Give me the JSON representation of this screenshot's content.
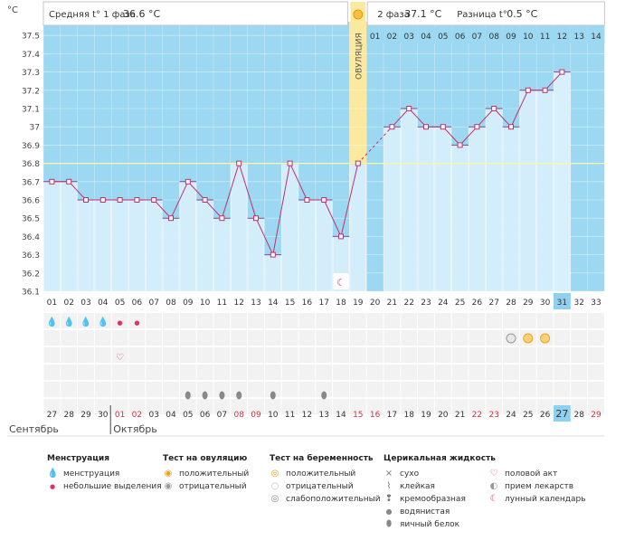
{
  "chart_data": {
    "type": "line",
    "y_unit": "°C",
    "ylim": [
      36.1,
      37.5
    ],
    "yticks": [
      "37.5",
      "37.4",
      "37.3",
      "37.2",
      "37.1",
      "37",
      "36.9",
      "36.8",
      "36.7",
      "36.6",
      "36.5",
      "36.4",
      "36.3",
      "36.2",
      "36.1"
    ],
    "cycle_days": [
      "01",
      "02",
      "03",
      "04",
      "05",
      "06",
      "07",
      "08",
      "09",
      "10",
      "11",
      "12",
      "13",
      "14",
      "15",
      "16",
      "17",
      "18",
      "19",
      "20",
      "21",
      "22",
      "23",
      "24",
      "25",
      "26",
      "27",
      "28",
      "29",
      "30",
      "31",
      "32",
      "33"
    ],
    "temperatures": [
      36.7,
      36.7,
      36.6,
      36.6,
      36.6,
      36.6,
      36.6,
      36.5,
      36.7,
      36.6,
      36.5,
      36.8,
      36.5,
      36.3,
      36.8,
      36.6,
      36.6,
      36.4,
      36.8,
      null,
      37.0,
      37.1,
      37.0,
      37.0,
      36.9,
      37.0,
      37.1,
      37.0,
      37.2,
      37.2,
      37.3,
      null,
      null
    ],
    "coverline": 36.8,
    "ovulation_day": 19,
    "ovulation_label": "ОВУЛЯЦИЯ",
    "phase1_label": "Средняя t° 1 фаза",
    "phase1_value": "36.6 °C",
    "phase2_label": "2 фаза",
    "phase2_value": "37.1 °C",
    "difference_label": "Разница t°",
    "difference_value": "0.5 °C",
    "dpo_days": [
      "01",
      "02",
      "03",
      "04",
      "05",
      "06",
      "07",
      "08",
      "09",
      "10",
      "11",
      "12",
      "13",
      "14"
    ],
    "today_cycle_day": "31",
    "dates": [
      "27",
      "28",
      "29",
      "30",
      "01",
      "02",
      "03",
      "04",
      "05",
      "06",
      "07",
      "08",
      "09",
      "10",
      "11",
      "12",
      "13",
      "14",
      "15",
      "16",
      "17",
      "18",
      "19",
      "20",
      "21",
      "22",
      "23",
      "24",
      "25",
      "26",
      "27",
      "28",
      "29"
    ],
    "red_dates": [
      4,
      5,
      11,
      12,
      18,
      19,
      25,
      26,
      32
    ],
    "month_prev": "Сентябрь",
    "month_next": "Октябрь",
    "menstruation": [
      "heavy",
      "heavy",
      "heavy",
      "heavy",
      "light",
      "light"
    ],
    "ovulation_tests_positive_days": [
      29,
      30
    ],
    "pregnancy_test_weak_days": [
      28
    ],
    "sex_days": [
      5
    ],
    "fluid_days": [
      9,
      10,
      11,
      12,
      14,
      17
    ],
    "moon_day": 18
  },
  "legend": {
    "menstruation": {
      "title": "Менструация",
      "items": [
        "менструация",
        "небольшие выделения"
      ]
    },
    "ovulation_test": {
      "title": "Тест на овуляцию",
      "items": [
        "положительный",
        "отрицательный"
      ]
    },
    "pregnancy_test": {
      "title": "Тест на беременность",
      "items": [
        "положительный",
        "отрицательный",
        "слабоположительный"
      ]
    },
    "cervical_fluid": {
      "title": "Церикальная жидкость",
      "items": [
        "сухо",
        "клейкая",
        "кремообразная",
        "водянистая",
        "яичный белок"
      ]
    },
    "other": {
      "items": [
        "половой акт",
        "прием лекарств",
        "лунный календарь"
      ]
    }
  }
}
